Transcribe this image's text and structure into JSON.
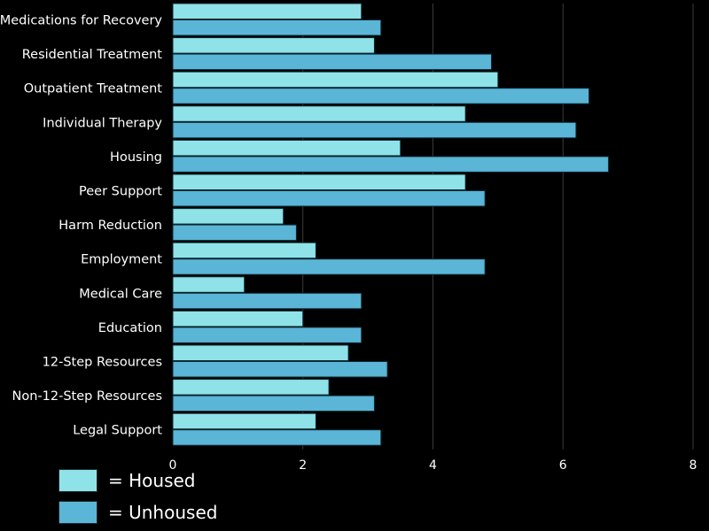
{
  "chart_data": {
    "type": "bar",
    "orientation": "horizontal",
    "categories": [
      "Medications for Recovery",
      "Residential Treatment",
      "Outpatient Treatment",
      "Individual Therapy",
      "Housing",
      "Peer Support",
      "Harm Reduction",
      "Employment",
      "Medical Care",
      "Education",
      "12-Step Resources",
      "Non-12-Step Resources",
      "Legal Support"
    ],
    "series": [
      {
        "name": "Housed",
        "color": "#8fe3e8",
        "values": [
          2.9,
          3.1,
          5.0,
          4.5,
          3.5,
          4.5,
          1.7,
          2.2,
          1.1,
          2.0,
          2.7,
          2.4,
          2.2
        ]
      },
      {
        "name": "Unhoused",
        "color": "#5ab5d6",
        "values": [
          3.2,
          4.9,
          6.4,
          6.2,
          6.7,
          4.8,
          1.9,
          4.8,
          2.9,
          2.9,
          3.3,
          3.1,
          3.2
        ]
      }
    ],
    "xlim": [
      0,
      8
    ],
    "xticks": [
      "0",
      "2",
      "4",
      "6",
      "8"
    ],
    "title": "",
    "xlabel": "",
    "ylabel": "",
    "grid": "vertical",
    "legend_position": "bottom-left"
  },
  "legend": {
    "housed_label": "= Housed",
    "unhoused_label": "= Unhoused"
  },
  "colors": {
    "background": "#000000",
    "housed": "#8fe3e8",
    "unhoused": "#5ab5d6"
  }
}
